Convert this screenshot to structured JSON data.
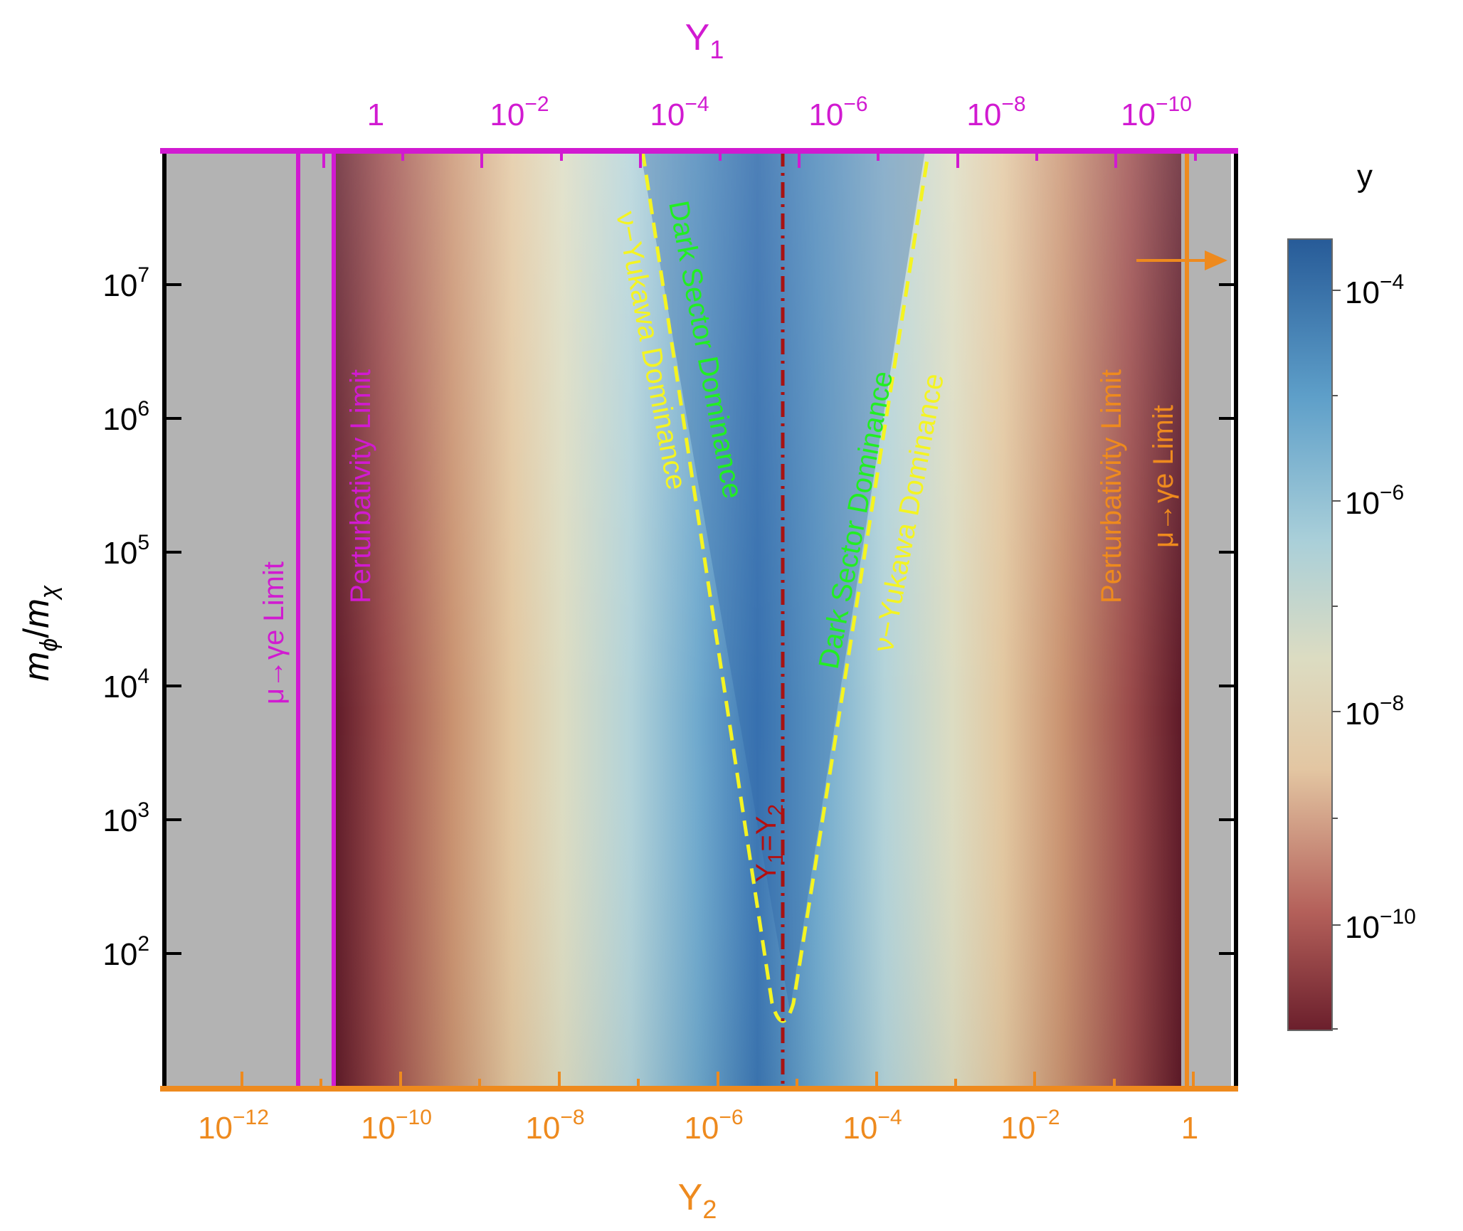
{
  "chart_data": {
    "type": "heatmap",
    "top_axis": {
      "title": "Y",
      "title_sub": "1",
      "ticks": [
        {
          "base": "1",
          "exp": ""
        },
        {
          "base": "10",
          "exp": "−2"
        },
        {
          "base": "10",
          "exp": "−4"
        },
        {
          "base": "10",
          "exp": "−6"
        },
        {
          "base": "10",
          "exp": "−8"
        },
        {
          "base": "10",
          "exp": "−10"
        }
      ],
      "scale": "log"
    },
    "bottom_axis": {
      "title": "Y",
      "title_sub": "2",
      "ticks": [
        {
          "base": "10",
          "exp": "−12"
        },
        {
          "base": "10",
          "exp": "−10"
        },
        {
          "base": "10",
          "exp": "−8"
        },
        {
          "base": "10",
          "exp": "−6"
        },
        {
          "base": "10",
          "exp": "−4"
        },
        {
          "base": "10",
          "exp": "−2"
        },
        {
          "base": "1",
          "exp": ""
        }
      ],
      "scale": "log"
    },
    "left_axis": {
      "title_m1": "m",
      "title_s1": "ϕ",
      "title_slash": "/",
      "title_m2": "m",
      "title_s2": "χ",
      "ticks": [
        {
          "base": "10",
          "exp": "7"
        },
        {
          "base": "10",
          "exp": "6"
        },
        {
          "base": "10",
          "exp": "5"
        },
        {
          "base": "10",
          "exp": "4"
        },
        {
          "base": "10",
          "exp": "3"
        },
        {
          "base": "10",
          "exp": "2"
        }
      ],
      "scale": "log"
    },
    "colorbar": {
      "title": "y",
      "ticks": [
        {
          "base": "10",
          "exp": "−4"
        },
        {
          "base": "10",
          "exp": "−6"
        },
        {
          "base": "10",
          "exp": "−8"
        },
        {
          "base": "10",
          "exp": "−10"
        }
      ],
      "scale": "log",
      "colors": [
        "#6b1f2c",
        "#b4605a",
        "#e3c6a2",
        "#dcdcc2",
        "#a9cfd9",
        "#5e9fc9",
        "#275b98"
      ]
    },
    "regions": [
      {
        "text": "μ→γe Limit",
        "color": "#d11ad1"
      },
      {
        "text": "Perturbativity Limit",
        "color": "#d11ad1"
      },
      {
        "text": "Perturbativity Limit",
        "color": "#ee8a1e"
      },
      {
        "text": "μ→γe Limit",
        "color": "#ee8a1e"
      }
    ],
    "annotations": {
      "left_green": "Dark Sector Dominance",
      "left_yellow": "ν−Yukawa Dominance",
      "right_green": "Dark Sector Dominance",
      "right_yellow": "ν−Yukawa Dominance",
      "eq_y1": "Y",
      "eq_s1": "1",
      "eq_mid": "=Y",
      "eq_s2": "2"
    }
  }
}
